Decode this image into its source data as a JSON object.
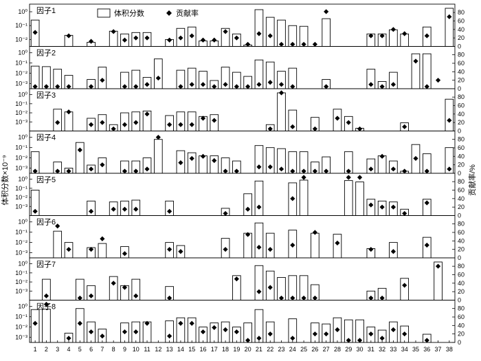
{
  "chart_data": {
    "type": "bar",
    "ylabel_left": "体积分数×10⁻⁹",
    "ylabel_right": "贡献率/%",
    "legend": {
      "bar": "体积分数",
      "marker": "贡献率",
      "placement": "top-center"
    },
    "categories": [
      "1",
      "2",
      "3",
      "4",
      "5",
      "6",
      "7",
      "8",
      "9",
      "10",
      "11",
      "12",
      "13",
      "14",
      "15",
      "16",
      "17",
      "18",
      "19",
      "20",
      "21",
      "22",
      "23",
      "24",
      "25",
      "26",
      "27",
      "28",
      "29",
      "30",
      "31",
      "32",
      "33",
      "34",
      "35",
      "36",
      "37",
      "38"
    ],
    "left_ticks": [
      "10⁰",
      "10⁻¹",
      "10⁻²",
      "10⁻³"
    ],
    "right_ticks": [
      "0",
      "20",
      "40",
      "60",
      "80"
    ],
    "left_scale": "log",
    "right_range": [
      0,
      90
    ],
    "panels": [
      {
        "label": "因子1",
        "ylim_log": [
          -2.5,
          0.35
        ],
        "ticks": [
          0,
          -1,
          -2
        ],
        "bars": [
          -0.6,
          null,
          null,
          -1.7,
          null,
          -2.2,
          null,
          -1.4,
          -1.6,
          -1.5,
          -1.5,
          null,
          -2.0,
          -1.2,
          -1.1,
          -2.1,
          -2.1,
          -1.2,
          -1.6,
          -2.4,
          0.15,
          -0.4,
          -0.6,
          -1.0,
          -1.05,
          -2.75,
          -0.5,
          null,
          null,
          null,
          -1.6,
          -1.6,
          -1.3,
          -1.6,
          null,
          -1.1,
          null,
          0.25
        ],
        "contrib": [
          33,
          null,
          null,
          25,
          null,
          12,
          null,
          35,
          15,
          20,
          20,
          null,
          15,
          20,
          25,
          15,
          15,
          35,
          20,
          5,
          30,
          25,
          5,
          5,
          5,
          5,
          82,
          null,
          null,
          null,
          25,
          25,
          40,
          30,
          null,
          25,
          null,
          70
        ]
      },
      {
        "label": "因子2",
        "ylim_log": [
          -3.5,
          0.35
        ],
        "ticks": [
          0,
          -1,
          -2,
          -3
        ],
        "bars": [
          -1.3,
          -1.35,
          -1.6,
          -2.2,
          null,
          -2.6,
          -1.4,
          null,
          -1.9,
          -1.7,
          -2.4,
          -0.6,
          null,
          -1.7,
          -1.5,
          -1.8,
          -2.7,
          -1.4,
          -1.9,
          -2.3,
          -0.7,
          -0.9,
          -1.8,
          -1.5,
          null,
          null,
          -2.6,
          null,
          null,
          null,
          -1.6,
          -2.8,
          -1.9,
          null,
          -0.1,
          -0.1,
          null,
          null
        ],
        "contrib": [
          5,
          5,
          5,
          5,
          null,
          5,
          20,
          null,
          5,
          5,
          10,
          25,
          null,
          5,
          10,
          10,
          5,
          10,
          5,
          5,
          10,
          15,
          10,
          5,
          null,
          null,
          5,
          null,
          null,
          null,
          10,
          5,
          10,
          null,
          65,
          5,
          20,
          null
        ]
      },
      {
        "label": "因子3",
        "ylim_log": [
          -4.0,
          0.35
        ],
        "ticks": [
          0,
          -1,
          -2,
          -3
        ],
        "bars": [
          null,
          null,
          -1.6,
          -1.9,
          null,
          -2.6,
          -2.2,
          -3.3,
          -2.0,
          -1.9,
          -1.8,
          null,
          -2.3,
          -1.9,
          -1.9,
          -2.4,
          -2.2,
          null,
          null,
          null,
          null,
          -3.3,
          0.2,
          -1.7,
          null,
          -2.5,
          null,
          -1.6,
          -2.4,
          -3.7,
          null,
          null,
          null,
          -3.1,
          null,
          null,
          null,
          -0.5
        ],
        "contrib": [
          null,
          null,
          20,
          45,
          null,
          15,
          20,
          5,
          15,
          20,
          40,
          null,
          15,
          15,
          15,
          30,
          25,
          null,
          null,
          null,
          null,
          5,
          90,
          10,
          null,
          5,
          null,
          30,
          20,
          5,
          null,
          null,
          null,
          10,
          null,
          null,
          null,
          25
        ]
      },
      {
        "label": "因子4",
        "ylim_log": [
          -3.5,
          0.35
        ],
        "ticks": [
          0,
          -1,
          -2,
          -3
        ],
        "bars": [
          -1.4,
          null,
          -2.4,
          -3.0,
          -0.5,
          -2.7,
          -2.0,
          null,
          -2.3,
          -2.3,
          -2.0,
          -0.2,
          null,
          -1.3,
          -1.5,
          -1.8,
          -1.8,
          -2.0,
          -2.3,
          null,
          -0.8,
          -1.0,
          -1.1,
          -1.4,
          -1.4,
          -2.4,
          -1.9,
          null,
          -1.4,
          null,
          -2.1,
          -1.8,
          -2.3,
          -3.3,
          -0.7,
          -1.6,
          null,
          -1.0
        ],
        "contrib": [
          5,
          null,
          5,
          5,
          55,
          10,
          20,
          null,
          5,
          5,
          10,
          85,
          null,
          25,
          35,
          40,
          30,
          5,
          5,
          null,
          15,
          15,
          10,
          5,
          5,
          5,
          5,
          null,
          5,
          null,
          10,
          40,
          10,
          5,
          35,
          5,
          null,
          10
        ]
      },
      {
        "label": "因子5",
        "ylim_log": [
          -4.0,
          0.35
        ],
        "ticks": [
          0,
          -1,
          -2,
          -3
        ],
        "bars": [
          -1.2,
          null,
          null,
          null,
          null,
          -2.4,
          null,
          -2.5,
          -2.4,
          -2.3,
          null,
          null,
          -2.4,
          null,
          null,
          null,
          null,
          -3.2,
          null,
          -1.6,
          -0.2,
          null,
          null,
          -0.4,
          -0.1,
          null,
          null,
          null,
          -0.15,
          -0.3,
          -2.2,
          -2.4,
          -2.5,
          -3.3,
          null,
          -2.2,
          null,
          null
        ],
        "contrib": [
          10,
          null,
          null,
          null,
          null,
          10,
          null,
          15,
          15,
          15,
          null,
          null,
          10,
          null,
          null,
          null,
          null,
          5,
          null,
          15,
          20,
          null,
          null,
          40,
          90,
          null,
          null,
          null,
          90,
          90,
          25,
          20,
          20,
          5,
          null,
          30,
          null,
          null
        ]
      },
      {
        "label": "因子6",
        "ylim_log": [
          -3.5,
          0.35
        ],
        "ticks": [
          0,
          -1,
          -2,
          -3
        ],
        "bars": [
          null,
          null,
          -0.9,
          -2.0,
          null,
          -2.5,
          -2.1,
          null,
          -2.4,
          null,
          null,
          null,
          -2.0,
          -2.3,
          null,
          null,
          null,
          -1.6,
          null,
          -1.1,
          -0.1,
          -1.1,
          null,
          -0.8,
          null,
          -1.1,
          null,
          -1.2,
          null,
          null,
          -2.6,
          null,
          -2.0,
          null,
          null,
          -1.5,
          null,
          null
        ],
        "contrib": [
          null,
          null,
          75,
          20,
          null,
          20,
          45,
          null,
          10,
          null,
          null,
          null,
          20,
          15,
          null,
          null,
          null,
          20,
          null,
          55,
          25,
          20,
          null,
          30,
          null,
          60,
          null,
          35,
          null,
          null,
          20,
          null,
          15,
          null,
          null,
          30,
          null,
          null
        ]
      },
      {
        "label": "因子7",
        "ylim_log": [
          -4.0,
          0.35
        ],
        "ticks": [
          0,
          -1,
          -2,
          -3
        ],
        "bars": [
          null,
          -1.7,
          null,
          null,
          -1.7,
          -2.4,
          null,
          -1.4,
          -2.4,
          -1.7,
          null,
          null,
          -2.5,
          null,
          null,
          null,
          null,
          null,
          -1.3,
          null,
          -0.2,
          -0.8,
          -1.5,
          -1.3,
          -1.3,
          -2.3,
          null,
          null,
          null,
          null,
          -3.0,
          -2.7,
          null,
          -1.6,
          null,
          null,
          0.2,
          null
        ],
        "contrib": [
          null,
          10,
          null,
          null,
          5,
          10,
          null,
          40,
          30,
          10,
          null,
          null,
          5,
          null,
          null,
          null,
          null,
          null,
          50,
          null,
          20,
          30,
          5,
          5,
          5,
          5,
          null,
          null,
          null,
          null,
          5,
          5,
          null,
          35,
          null,
          null,
          80,
          null
        ]
      },
      {
        "label": "因子8",
        "ylim_log": [
          -3.5,
          0.35
        ],
        "ticks": [
          0,
          -1,
          -2,
          -3
        ],
        "bars": [
          -0.3,
          -0.25,
          null,
          -2.6,
          -0.2,
          -1.5,
          -2.2,
          null,
          -1.6,
          -1.5,
          -1.5,
          null,
          -1.4,
          -1.1,
          -1.1,
          -2.0,
          -1.6,
          -1.5,
          -2.0,
          -1.6,
          -0.3,
          -1.5,
          null,
          -1.2,
          null,
          -1.6,
          -1.7,
          -1.1,
          -1.3,
          -1.3,
          -2.0,
          -2.3,
          -1.5,
          -1.9,
          null,
          -2.7,
          null,
          null
        ],
        "contrib": [
          45,
          90,
          null,
          10,
          45,
          25,
          15,
          null,
          25,
          25,
          45,
          null,
          15,
          45,
          45,
          25,
          35,
          30,
          25,
          5,
          10,
          20,
          null,
          10,
          null,
          20,
          20,
          30,
          5,
          5,
          20,
          10,
          30,
          20,
          null,
          5,
          null,
          null
        ]
      }
    ]
  }
}
